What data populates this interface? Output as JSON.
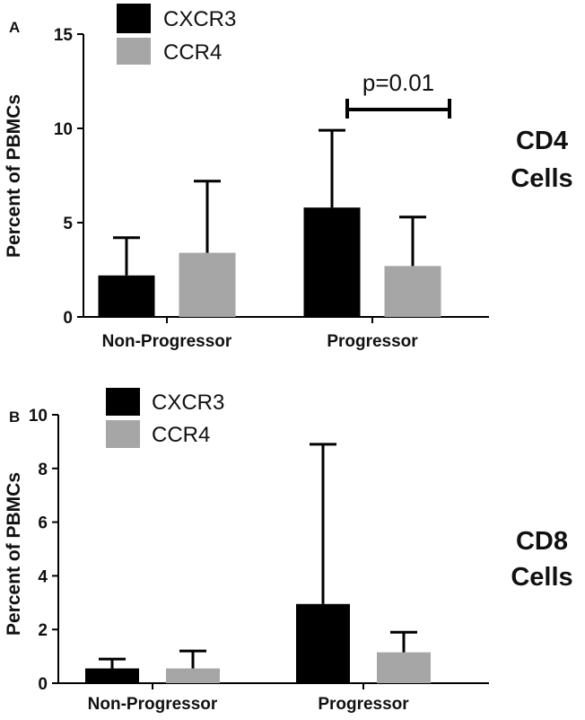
{
  "colors": {
    "cxcr3": "#000000",
    "ccr4": "#a6a6a6",
    "axis": "#000000"
  },
  "chart_data": [
    {
      "type": "bar",
      "panel": "A",
      "side_label": [
        "CD4",
        "Cells"
      ],
      "ylabel": "Percent of  PBMCs",
      "ylim": [
        0,
        15
      ],
      "yticks": [
        0,
        5,
        10,
        15
      ],
      "categories": [
        "Non-Progressor",
        "Progressor"
      ],
      "series": [
        {
          "name": "CXCR3",
          "values": [
            2.2,
            5.8
          ],
          "err": [
            2.0,
            4.1
          ]
        },
        {
          "name": "CCR4",
          "values": [
            3.4,
            2.7
          ],
          "err": [
            3.8,
            2.6
          ]
        }
      ],
      "annotation": {
        "text": "p=0.01",
        "category_index": 1
      }
    },
    {
      "type": "bar",
      "panel": "B",
      "side_label": [
        "CD8",
        "Cells"
      ],
      "ylabel": "Percent of  PBMCs",
      "ylim": [
        0,
        10
      ],
      "yticks": [
        0,
        2,
        4,
        6,
        8,
        10
      ],
      "categories": [
        "Non-Progressor",
        "Progressor"
      ],
      "series": [
        {
          "name": "CXCR3",
          "values": [
            0.55,
            2.95
          ],
          "err": [
            0.35,
            5.95
          ]
        },
        {
          "name": "CCR4",
          "values": [
            0.55,
            1.15
          ],
          "err": [
            0.65,
            0.75
          ]
        }
      ]
    }
  ]
}
